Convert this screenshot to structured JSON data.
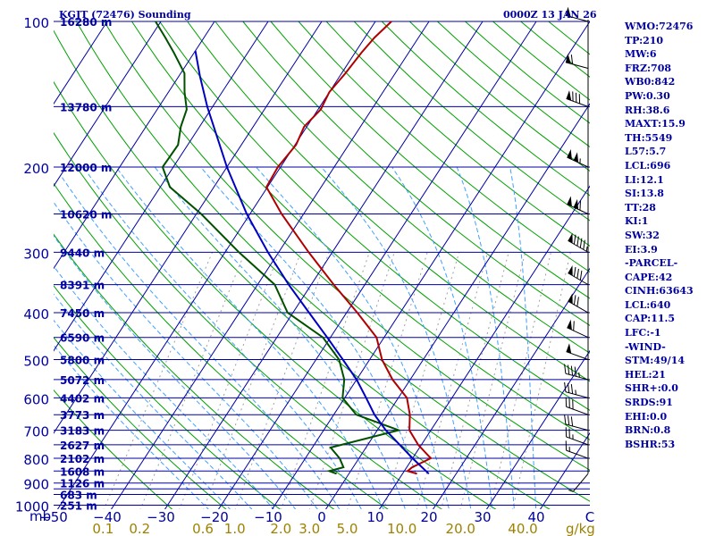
{
  "header": {
    "station": "KGJT (72476) Sounding",
    "time": "0000Z 13 JAN 26"
  },
  "colors": {
    "isobar": "#0000a0",
    "isotherm": "#0000a0",
    "dry_adiabat": "#00a000",
    "moist_adiabat": "#40a0ff",
    "mixing_ratio": "#a0a0a0",
    "temperature": "#b00000",
    "dewpoint": "#005000",
    "parcel": "#0000c0",
    "axis_text": "#0000a0",
    "mixing_text": "#a08000",
    "wind": "#000000"
  },
  "chart_data": {
    "type": "line",
    "chart_kind": "skew-T log-p sounding",
    "xlabel": "C",
    "ylabel": "mb",
    "xlim": [
      -50,
      50
    ],
    "ylim": [
      1050,
      100
    ],
    "y_scale": "log",
    "grid": true,
    "pressure_levels": [
      100,
      150,
      200,
      250,
      300,
      350,
      400,
      450,
      500,
      550,
      600,
      650,
      700,
      750,
      800,
      850,
      900,
      925,
      950,
      1000
    ],
    "pressure_tick_labels": [
      {
        "p": 100,
        "label": "100"
      },
      {
        "p": 200,
        "label": "200"
      },
      {
        "p": 300,
        "label": "300"
      },
      {
        "p": 400,
        "label": "400"
      },
      {
        "p": 500,
        "label": "500"
      },
      {
        "p": 600,
        "label": "600"
      },
      {
        "p": 700,
        "label": "700"
      },
      {
        "p": 800,
        "label": "800"
      },
      {
        "p": 900,
        "label": "900"
      },
      {
        "p": 1000,
        "label": "1000"
      }
    ],
    "height_labels": [
      {
        "p": 100,
        "label": "16280 m"
      },
      {
        "p": 150,
        "label": "13780 m"
      },
      {
        "p": 200,
        "label": "12000 m"
      },
      {
        "p": 250,
        "label": "10620 m"
      },
      {
        "p": 300,
        "label": "9440 m"
      },
      {
        "p": 350,
        "label": "8391 m"
      },
      {
        "p": 400,
        "label": "7450 m"
      },
      {
        "p": 450,
        "label": "6590 m"
      },
      {
        "p": 500,
        "label": "5800 m"
      },
      {
        "p": 550,
        "label": "5072 m"
      },
      {
        "p": 600,
        "label": "4402 m"
      },
      {
        "p": 650,
        "label": "3773 m"
      },
      {
        "p": 700,
        "label": "3183 m"
      },
      {
        "p": 750,
        "label": "2627 m"
      },
      {
        "p": 800,
        "label": "2102 m"
      },
      {
        "p": 850,
        "label": "1608 m"
      },
      {
        "p": 900,
        "label": "1126 m"
      },
      {
        "p": 950,
        "label": "683 m"
      },
      {
        "p": 1000,
        "label": "251 m"
      }
    ],
    "temperature_ticks": [
      -50,
      -40,
      -30,
      -20,
      -10,
      0,
      10,
      20,
      30,
      40
    ],
    "temperature_tick_labels": [
      "−50",
      "−40",
      "−30",
      "−20",
      "−10",
      "0",
      "10",
      "20",
      "30",
      "40"
    ],
    "mixing_ratio_lines": [
      0.1,
      0.2,
      0.4,
      0.6,
      1.0,
      2.0,
      3.0,
      5.0,
      8.0,
      12.0,
      16.0,
      20.0,
      28.0,
      36.0
    ],
    "mixing_ratio_labels": [
      {
        "w": 0.1,
        "label": "0.1"
      },
      {
        "w": 0.2,
        "label": "0.2"
      },
      {
        "w": 0.6,
        "label": "0.6"
      },
      {
        "w": 1.0,
        "label": "1.0"
      },
      {
        "w": 2.0,
        "label": "2.0"
      },
      {
        "w": 3.0,
        "label": "3.0"
      },
      {
        "w": 5.0,
        "label": "5.0"
      },
      {
        "w": 10.0,
        "label": "10.0"
      },
      {
        "w": 20.0,
        "label": "20.0"
      },
      {
        "w": 40.0,
        "label": "40.0"
      }
    ],
    "mixing_ratio_unit": "g/kg",
    "series": [
      {
        "key": "temperature",
        "points": [
          [
            861,
            12.7
          ],
          [
            850,
            10.6
          ],
          [
            835,
            11
          ],
          [
            800,
            13.4
          ],
          [
            750,
            9.4
          ],
          [
            700,
            6.0
          ],
          [
            650,
            4.2
          ],
          [
            600,
            1.6
          ],
          [
            550,
            -3.3
          ],
          [
            500,
            -7.7
          ],
          [
            450,
            -11.4
          ],
          [
            400,
            -18.0
          ],
          [
            350,
            -25.8
          ],
          [
            300,
            -34.4
          ],
          [
            250,
            -44.1
          ],
          [
            220,
            -50.2
          ],
          [
            200,
            -50.5
          ],
          [
            180,
            -49.8
          ],
          [
            165,
            -50.5
          ],
          [
            152,
            -49.5
          ],
          [
            140,
            -50.0
          ],
          [
            128,
            -49.3
          ],
          [
            116,
            -48.8
          ],
          [
            108,
            -48.2
          ],
          [
            100,
            -47.0
          ]
        ]
      },
      {
        "key": "dewpoint",
        "points": [
          [
            861,
            -2.3
          ],
          [
            850,
            -4
          ],
          [
            835,
            -1.8
          ],
          [
            800,
            -3.6
          ],
          [
            760,
            -6.6
          ],
          [
            700,
            4.0
          ],
          [
            650,
            -5.8
          ],
          [
            600,
            -10.4
          ],
          [
            550,
            -12.3
          ],
          [
            500,
            -15.7
          ],
          [
            450,
            -21.4
          ],
          [
            400,
            -31.0
          ],
          [
            350,
            -36.8
          ],
          [
            300,
            -47.4
          ],
          [
            250,
            -59.1
          ],
          [
            220,
            -68.2
          ],
          [
            200,
            -72.0
          ],
          [
            180,
            -71.8
          ],
          [
            165,
            -73.5
          ],
          [
            152,
            -74.5
          ],
          [
            140,
            -77.0
          ],
          [
            128,
            -79.3
          ],
          [
            116,
            -83.8
          ],
          [
            108,
            -87.2
          ],
          [
            100,
            -91.0
          ]
        ]
      },
      {
        "key": "parcel",
        "points": [
          [
            861,
            14.9
          ],
          [
            800,
            10.0
          ],
          [
            700,
            1.6
          ],
          [
            650,
            -2.4
          ],
          [
            600,
            -6.0
          ],
          [
            550,
            -10.0
          ],
          [
            500,
            -15.0
          ],
          [
            450,
            -20.6
          ],
          [
            400,
            -27.0
          ],
          [
            350,
            -34.2
          ],
          [
            300,
            -42.0
          ],
          [
            250,
            -50.6
          ],
          [
            200,
            -60.0
          ],
          [
            150,
            -71.0
          ],
          [
            130,
            -76.0
          ],
          [
            115,
            -80.0
          ]
        ]
      }
    ]
  },
  "wind_barbs": [
    {
      "p": 861,
      "dir": 220,
      "spd": 5
    },
    {
      "p": 800,
      "dir": 290,
      "spd": 15
    },
    {
      "p": 750,
      "dir": 290,
      "spd": 25
    },
    {
      "p": 700,
      "dir": 285,
      "spd": 30
    },
    {
      "p": 650,
      "dir": 290,
      "spd": 30
    },
    {
      "p": 600,
      "dir": 285,
      "spd": 35
    },
    {
      "p": 550,
      "dir": 285,
      "spd": 45
    },
    {
      "p": 500,
      "dir": 290,
      "spd": 50
    },
    {
      "p": 450,
      "dir": 295,
      "spd": 60
    },
    {
      "p": 400,
      "dir": 300,
      "spd": 70
    },
    {
      "p": 350,
      "dir": 300,
      "spd": 80
    },
    {
      "p": 300,
      "dir": 300,
      "spd": 95
    },
    {
      "p": 250,
      "dir": 295,
      "spd": 110
    },
    {
      "p": 200,
      "dir": 295,
      "spd": 105
    },
    {
      "p": 150,
      "dir": 290,
      "spd": 80
    },
    {
      "p": 125,
      "dir": 285,
      "spd": 60
    },
    {
      "p": 100,
      "dir": 285,
      "spd": 50
    }
  ],
  "stats": [
    "WMO:72476",
    "TP:210",
    "MW:6",
    "FRZ:708",
    "WB0:842",
    "PW:0.30",
    "RH:38.6",
    "MAXT:15.9",
    "TH:5549",
    "L57:5.7",
    "LCL:696",
    "LI:12.1",
    "SI:13.8",
    "TT:28",
    "KI:1",
    "SW:32",
    "EI:3.9",
    "-PARCEL-",
    "CAPE:42",
    "CINH:63643",
    "LCL:640",
    "CAP:11.5",
    "LFC:-1",
    "-WIND-",
    "STM:49/14",
    "HEL:21",
    "SHR+:0.0",
    "SRDS:91",
    "EHI:0.0",
    "BRN:0.8",
    "BSHR:53"
  ]
}
